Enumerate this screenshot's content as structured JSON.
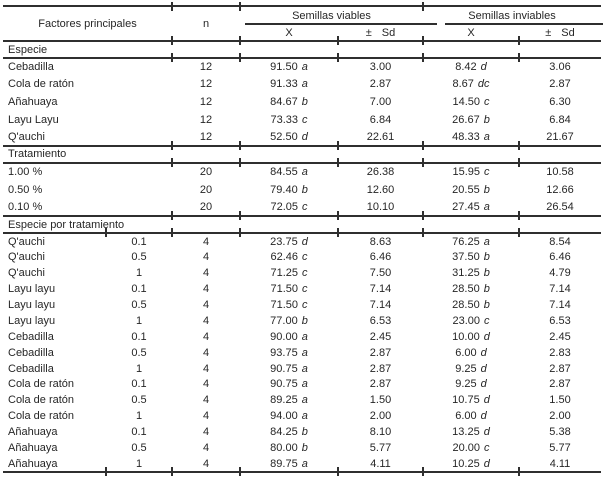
{
  "colors": {
    "ink": "#262626",
    "background": "#ffffff"
  },
  "table": {
    "header": {
      "factors": "Factores principales",
      "n": "n",
      "group_viable": "Semillas viables",
      "group_inviable": "Semillas inviables",
      "sub_x": "X",
      "sub_pm": "±",
      "sub_sd": "Sd"
    },
    "sections": [
      {
        "title": "Especie",
        "rows": [
          {
            "label": "Cebadilla",
            "n": "12",
            "xv": "91.50",
            "xv_l": "a",
            "sdv": "3.00",
            "xi": "8.42",
            "xi_l": "d",
            "sdi": "3.06"
          },
          {
            "label": "Cola de ratón",
            "n": "12",
            "xv": "91.33",
            "xv_l": "a",
            "sdv": "2.87",
            "xi": "8.67",
            "xi_l": "dc",
            "sdi": "2.87"
          },
          {
            "label": "Añahuaya",
            "n": "12",
            "xv": "84.67",
            "xv_l": "b",
            "sdv": "7.00",
            "xi": "14.50",
            "xi_l": "c",
            "sdi": "6.30"
          },
          {
            "label": "Layu Layu",
            "n": "12",
            "xv": "73.33",
            "xv_l": "c",
            "sdv": "6.84",
            "xi": "26.67",
            "xi_l": "b",
            "sdi": "6.84"
          },
          {
            "label": "Q'auchi",
            "n": "12",
            "xv": "52.50",
            "xv_l": "d",
            "sdv": "22.61",
            "xi": "48.33",
            "xi_l": "a",
            "sdi": "21.67"
          }
        ]
      },
      {
        "title": "Tratamiento",
        "rows": [
          {
            "label": "1.00 %",
            "n": "20",
            "xv": "84.55",
            "xv_l": "a",
            "sdv": "26.38",
            "xi": "15.95",
            "xi_l": "c",
            "sdi": "10.58"
          },
          {
            "label": "0.50 %",
            "n": "20",
            "xv": "79.40",
            "xv_l": "b",
            "sdv": "12.60",
            "xi": "20.55",
            "xi_l": "b",
            "sdi": "12.66"
          },
          {
            "label": "0.10 %",
            "n": "20",
            "xv": "72.05",
            "xv_l": "c",
            "sdv": "10.10",
            "xi": "27.45",
            "xi_l": "a",
            "sdi": "26.54"
          }
        ]
      },
      {
        "title": "Especie por tratamiento",
        "rows": [
          {
            "label": "Q'auchi",
            "dose": "0.1",
            "n": "4",
            "xv": "23.75",
            "xv_l": "d",
            "sdv": "8.63",
            "xi": "76.25",
            "xi_l": "a",
            "sdi": "8.54"
          },
          {
            "label": "Q'auchi",
            "dose": "0.5",
            "n": "4",
            "xv": "62.46",
            "xv_l": "c",
            "sdv": "6.46",
            "xi": "37.50",
            "xi_l": "b",
            "sdi": "6.46"
          },
          {
            "label": "Q'auchi",
            "dose": "1",
            "n": "4",
            "xv": "71.25",
            "xv_l": "c",
            "sdv": "7.50",
            "xi": "31.25",
            "xi_l": "b",
            "sdi": "4.79"
          },
          {
            "label": "Layu layu",
            "dose": "0.1",
            "n": "4",
            "xv": "71.50",
            "xv_l": "c",
            "sdv": "7.14",
            "xi": "28.50",
            "xi_l": "b",
            "sdi": "7.14"
          },
          {
            "label": "Layu layu",
            "dose": "0.5",
            "n": "4",
            "xv": "71.50",
            "xv_l": "c",
            "sdv": "7.14",
            "xi": "28.50",
            "xi_l": "b",
            "sdi": "7.14"
          },
          {
            "label": "Layu layu",
            "dose": "1",
            "n": "4",
            "xv": "77.00",
            "xv_l": "b",
            "sdv": "6.53",
            "xi": "23.00",
            "xi_l": "c",
            "sdi": "6.53"
          },
          {
            "label": "Cebadilla",
            "dose": "0.1",
            "n": "4",
            "xv": "90.00",
            "xv_l": "a",
            "sdv": "2.45",
            "xi": "10.00",
            "xi_l": "d",
            "sdi": "2.45"
          },
          {
            "label": "Cebadilla",
            "dose": "0.5",
            "n": "4",
            "xv": "93.75",
            "xv_l": "a",
            "sdv": "2.87",
            "xi": "6.00",
            "xi_l": "d",
            "sdi": "2.83"
          },
          {
            "label": "Cebadilla",
            "dose": "1",
            "n": "4",
            "xv": "90.75",
            "xv_l": "a",
            "sdv": "2.87",
            "xi": "9.25",
            "xi_l": "d",
            "sdi": "2.87"
          },
          {
            "label": "Cola de ratón",
            "dose": "0.1",
            "n": "4",
            "xv": "90.75",
            "xv_l": "a",
            "sdv": "2.87",
            "xi": "9.25",
            "xi_l": "d",
            "sdi": "2.87"
          },
          {
            "label": "Cola de ratón",
            "dose": "0.5",
            "n": "4",
            "xv": "89.25",
            "xv_l": "a",
            "sdv": "1.50",
            "xi": "10.75",
            "xi_l": "d",
            "sdi": "1.50"
          },
          {
            "label": "Cola de ratón",
            "dose": "1",
            "n": "4",
            "xv": "94.00",
            "xv_l": "a",
            "sdv": "2.00",
            "xi": "6.00",
            "xi_l": "d",
            "sdi": "2.00"
          },
          {
            "label": "Añahuaya",
            "dose": "0.1",
            "n": "4",
            "xv": "84.25",
            "xv_l": "b",
            "sdv": "8.10",
            "xi": "13.25",
            "xi_l": "d",
            "sdi": "5.38"
          },
          {
            "label": "Añahuaya",
            "dose": "0.5",
            "n": "4",
            "xv": "80.00",
            "xv_l": "b",
            "sdv": "5.77",
            "xi": "20.00",
            "xi_l": "c",
            "sdi": "5.77"
          },
          {
            "label": "Añahuaya",
            "dose": "1",
            "n": "4",
            "xv": "89.75",
            "xv_l": "a",
            "sdv": "4.11",
            "xi": "10.25",
            "xi_l": "d",
            "sdi": "4.11"
          }
        ]
      }
    ]
  }
}
